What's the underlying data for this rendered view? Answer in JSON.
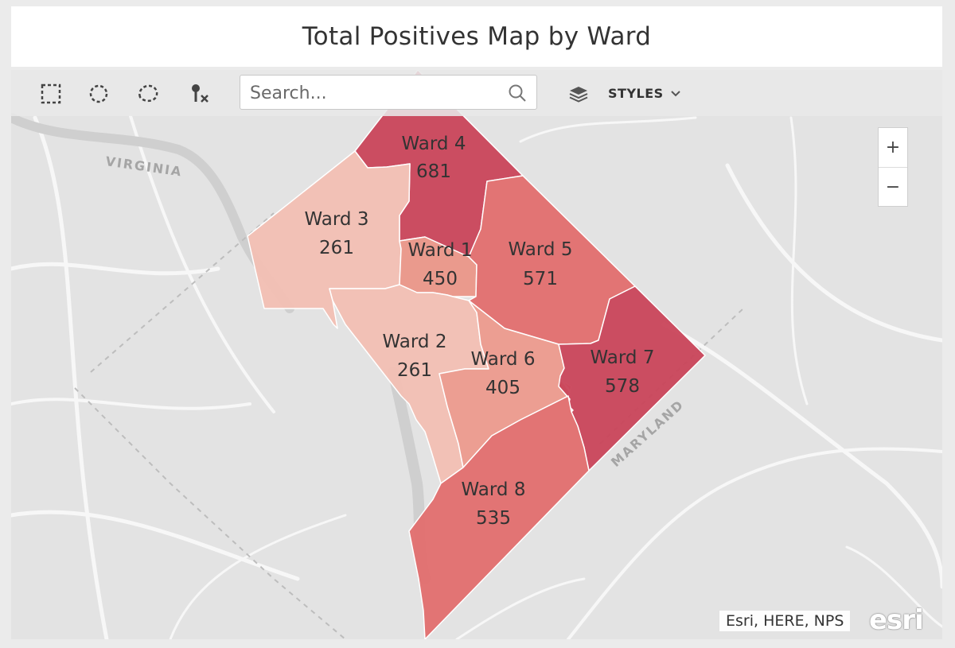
{
  "title": "Total Positives Map by Ward",
  "toolbar": {
    "tools": [
      {
        "name": "select-rectangle-tool",
        "icon": "dashed-square-icon"
      },
      {
        "name": "select-circle-tool",
        "icon": "dashed-circle-icon"
      },
      {
        "name": "select-lasso-tool",
        "icon": "dashed-lasso-icon"
      },
      {
        "name": "clear-selection-tool",
        "icon": "pin-clear-icon"
      }
    ],
    "search_placeholder": "Search...",
    "styles_label": "STYLES"
  },
  "zoom": {
    "in": "+",
    "out": "−"
  },
  "place_labels": {
    "virginia": "VIRGINIA",
    "maryland": "MARYLAND"
  },
  "wards": [
    {
      "id": "ward-4",
      "name": "Ward 4",
      "value": "681",
      "color": "#c9445a"
    },
    {
      "id": "ward-3",
      "name": "Ward 3",
      "value": "261",
      "color": "#f2bfb3"
    },
    {
      "id": "ward-1",
      "name": "Ward 1",
      "value": "450",
      "color": "#ea9688"
    },
    {
      "id": "ward-5",
      "name": "Ward 5",
      "value": "571",
      "color": "#e26e6e"
    },
    {
      "id": "ward-2",
      "name": "Ward 2",
      "value": "261",
      "color": "#f2bfb3"
    },
    {
      "id": "ward-6",
      "name": "Ward 6",
      "value": "405",
      "color": "#ec9a8d"
    },
    {
      "id": "ward-7",
      "name": "Ward 7",
      "value": "578",
      "color": "#c9445a"
    },
    {
      "id": "ward-8",
      "name": "Ward 8",
      "value": "535",
      "color": "#e26e6e"
    }
  ],
  "attribution": "Esri, HERE, NPS",
  "logo": "esri"
}
